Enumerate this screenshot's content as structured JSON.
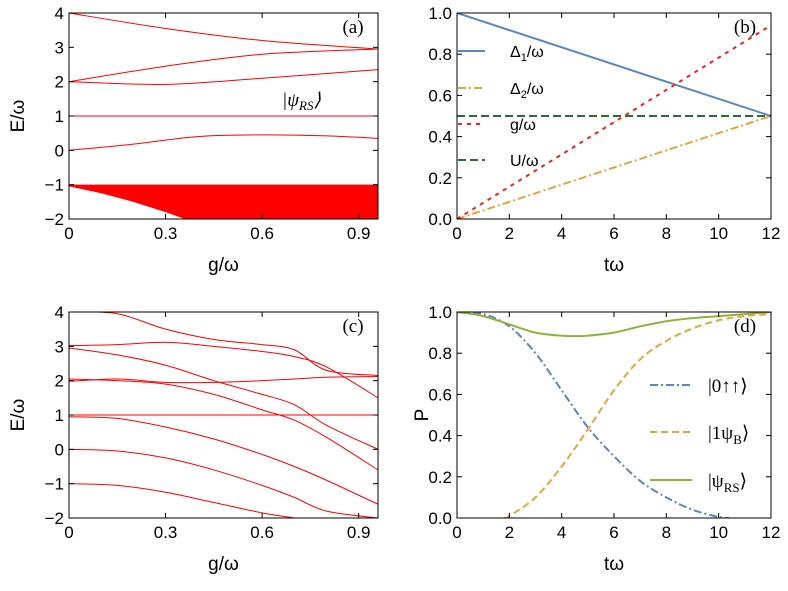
{
  "chart_data": [
    {
      "panel": "(a)",
      "type": "line",
      "xlabel": "g/ω",
      "ylabel": "E/ω",
      "xlim": [
        0,
        0.96
      ],
      "ylim": [
        -2,
        4
      ],
      "xticks": [
        "0",
        "0.3",
        "0.6",
        "0.9"
      ],
      "xtick_values": [
        0,
        0.3,
        0.6,
        0.9
      ],
      "yticks": [
        "4",
        "3",
        "2",
        "1",
        "0",
        "-1",
        "-2"
      ],
      "ytick_values": [
        4,
        3,
        2,
        1,
        0,
        -1,
        -2
      ],
      "annotation": "|ψRS⟩",
      "series_color": "#ff0000",
      "lines": [
        {
          "x": [
            0,
            0.3,
            0.6,
            0.96
          ],
          "y": [
            4.0,
            3.55,
            3.2,
            2.95
          ]
        },
        {
          "x": [
            0,
            0.3,
            0.6,
            0.96
          ],
          "y": [
            2.0,
            2.45,
            2.8,
            2.95
          ]
        },
        {
          "x": [
            0,
            0.3,
            0.6,
            0.96
          ],
          "y": [
            2.0,
            1.92,
            2.1,
            2.35
          ]
        },
        {
          "x": [
            0,
            0.96
          ],
          "y": [
            1.0,
            1.0
          ]
        },
        {
          "x": [
            0,
            0.2,
            0.4,
            0.6,
            0.8,
            0.96
          ],
          "y": [
            0.0,
            0.18,
            0.4,
            0.45,
            0.42,
            0.35
          ]
        }
      ],
      "band": {
        "top": -1,
        "x": [
          0,
          0.1,
          0.2,
          0.3,
          0.36
        ],
        "bottom": [
          -1.05,
          -1.25,
          -1.5,
          -1.8,
          -2.0
        ]
      }
    },
    {
      "panel": "(b)",
      "type": "line",
      "xlabel": "tω",
      "ylabel": "",
      "xlim": [
        0,
        12
      ],
      "ylim": [
        0,
        1
      ],
      "xticks": [
        "0",
        "2",
        "4",
        "6",
        "8",
        "10",
        "12"
      ],
      "xtick_values": [
        0,
        2,
        4,
        6,
        8,
        10,
        12
      ],
      "yticks": [
        "1.0",
        "0.8",
        "0.6",
        "0.4",
        "0.2",
        "0.0"
      ],
      "ytick_values": [
        1.0,
        0.8,
        0.6,
        0.4,
        0.2,
        0.0
      ],
      "series": [
        {
          "name": "Δ1/ω",
          "color": "#5b86c3",
          "dash": "",
          "x": [
            0,
            12
          ],
          "y": [
            1.0,
            0.5
          ]
        },
        {
          "name": "Δ2/ω",
          "color": "#e8a33c",
          "dash": "8 3 2 3",
          "x": [
            0,
            12
          ],
          "y": [
            0.0,
            0.5
          ]
        },
        {
          "name": "g/ω",
          "color": "#f22020",
          "dash": "4 5",
          "x": [
            0,
            12
          ],
          "y": [
            0.0,
            0.94
          ]
        },
        {
          "name": "U/ω",
          "color": "#2c6e2f",
          "dash": "8 4",
          "x": [
            0,
            12
          ],
          "y": [
            0.5,
            0.5
          ]
        }
      ],
      "legend": [
        {
          "label": "Δ1/ω",
          "text": "Δ",
          "sub": "1",
          "tail": "/ω",
          "color": "#5b86c3",
          "dash": ""
        },
        {
          "label": "Δ2/ω",
          "text": "Δ",
          "sub": "2",
          "tail": "/ω",
          "color": "#e8a33c",
          "dash": "8 3 2 3"
        },
        {
          "label": "g/ω",
          "text": "g/ω",
          "sub": "",
          "tail": "",
          "color": "#f22020",
          "dash": "4 5"
        },
        {
          "label": "U/ω",
          "text": "U/ω",
          "sub": "",
          "tail": "",
          "color": "#2c6e2f",
          "dash": "8 4"
        }
      ]
    },
    {
      "panel": "(c)",
      "type": "line",
      "xlabel": "g/ω",
      "ylabel": "E/ω",
      "xlim": [
        0,
        0.96
      ],
      "ylim": [
        -2,
        4
      ],
      "xticks": [
        "0",
        "0.3",
        "0.6",
        "0.9"
      ],
      "xtick_values": [
        0,
        0.3,
        0.6,
        0.9
      ],
      "yticks": [
        "4",
        "3",
        "2",
        "1",
        "0",
        "-1",
        "-2"
      ],
      "ytick_values": [
        4,
        3,
        2,
        1,
        0,
        -1,
        -2
      ],
      "series_color": "#ff0000",
      "lines": [
        {
          "x": [
            0,
            0.15,
            0.3,
            0.45,
            0.6,
            0.7,
            0.8,
            0.96
          ],
          "y": [
            4.0,
            3.95,
            3.5,
            3.2,
            3.05,
            2.9,
            2.3,
            2.15
          ]
        },
        {
          "x": [
            0,
            0.15,
            0.3,
            0.45,
            0.6,
            0.7,
            0.8,
            0.96
          ],
          "y": [
            3.02,
            3.05,
            3.12,
            3.0,
            2.85,
            2.7,
            2.4,
            1.5
          ]
        },
        {
          "x": [
            0,
            0.15,
            0.3,
            0.45,
            0.6,
            0.7,
            0.8,
            0.96
          ],
          "y": [
            2.95,
            2.75,
            2.45,
            2.0,
            1.6,
            1.3,
            0.7,
            0.0
          ]
        },
        {
          "x": [
            0,
            0.15,
            0.3,
            0.45,
            0.6,
            0.7,
            0.8,
            0.96
          ],
          "y": [
            2.05,
            2.0,
            1.9,
            1.6,
            1.15,
            0.85,
            0.35,
            -0.6
          ]
        },
        {
          "x": [
            0,
            0.15,
            0.3,
            0.45,
            0.6,
            0.7,
            0.8,
            0.96
          ],
          "y": [
            1.98,
            2.05,
            1.95,
            1.95,
            2.0,
            2.05,
            2.1,
            2.12
          ]
        },
        {
          "x": [
            0,
            0.96
          ],
          "y": [
            1.0,
            1.0
          ]
        },
        {
          "x": [
            0,
            0.15,
            0.3,
            0.45,
            0.6,
            0.7,
            0.8,
            0.96
          ],
          "y": [
            0.95,
            0.9,
            0.65,
            0.3,
            -0.15,
            -0.5,
            -0.9,
            -1.6
          ]
        },
        {
          "x": [
            0,
            0.15,
            0.3,
            0.45,
            0.6,
            0.7,
            0.8,
            0.96
          ],
          "y": [
            0.0,
            -0.05,
            -0.25,
            -0.6,
            -1.05,
            -1.4,
            -1.8,
            -2.0
          ]
        },
        {
          "x": [
            0,
            0.15,
            0.3,
            0.45,
            0.6,
            0.7
          ],
          "y": [
            -1.0,
            -1.05,
            -1.25,
            -1.55,
            -1.85,
            -2.0
          ]
        }
      ]
    },
    {
      "panel": "(d)",
      "type": "line",
      "xlabel": "tω",
      "ylabel": "P",
      "xlim": [
        0,
        12
      ],
      "ylim": [
        0,
        1
      ],
      "xticks": [
        "0",
        "2",
        "4",
        "6",
        "8",
        "10",
        "12"
      ],
      "xtick_values": [
        0,
        2,
        4,
        6,
        8,
        10,
        12
      ],
      "yticks": [
        "1.0",
        "0.8",
        "0.6",
        "0.4",
        "0.2",
        "0.0"
      ],
      "ytick_values": [
        1.0,
        0.8,
        0.6,
        0.4,
        0.2,
        0.0
      ],
      "series": [
        {
          "name": "|0↑↑⟩",
          "color": "#5b86c3",
          "dash": "8 3 2 3",
          "x": [
            0,
            1,
            2,
            3,
            4,
            5,
            6,
            7,
            8,
            9,
            10,
            10.4
          ],
          "y": [
            1.0,
            0.99,
            0.93,
            0.8,
            0.62,
            0.44,
            0.3,
            0.18,
            0.1,
            0.04,
            0.005,
            0.0
          ]
        },
        {
          "name": "|1ψB⟩",
          "color": "#e8a33c",
          "dash": "7 4",
          "x": [
            1.8,
            2,
            3,
            4,
            5,
            6,
            7,
            8,
            9,
            10,
            11,
            12
          ],
          "y": [
            0.0,
            0.01,
            0.1,
            0.25,
            0.43,
            0.62,
            0.77,
            0.86,
            0.92,
            0.96,
            0.98,
            0.99
          ]
        },
        {
          "name": "|ψRS⟩",
          "color": "#8db33c",
          "dash": "",
          "x": [
            0,
            1,
            2,
            3,
            4,
            4.5,
            5,
            6,
            7,
            8,
            9,
            10,
            11,
            12
          ],
          "y": [
            1.0,
            0.98,
            0.94,
            0.9,
            0.885,
            0.883,
            0.885,
            0.9,
            0.93,
            0.955,
            0.97,
            0.98,
            0.99,
            1.0
          ]
        }
      ],
      "legend": [
        {
          "label": "|0↑↑⟩",
          "text": "|0↑↑⟩",
          "sub": "",
          "color": "#5b86c3",
          "dash": "8 3 2 3"
        },
        {
          "label": "|1ψB⟩",
          "text": "|1ψ",
          "sub": "B",
          "tail": "⟩",
          "color": "#e8a33c",
          "dash": "7 4"
        },
        {
          "label": "|ψRS⟩",
          "text": "|ψ",
          "sub": "RS",
          "tail": "⟩",
          "color": "#8db33c",
          "dash": ""
        }
      ]
    }
  ]
}
